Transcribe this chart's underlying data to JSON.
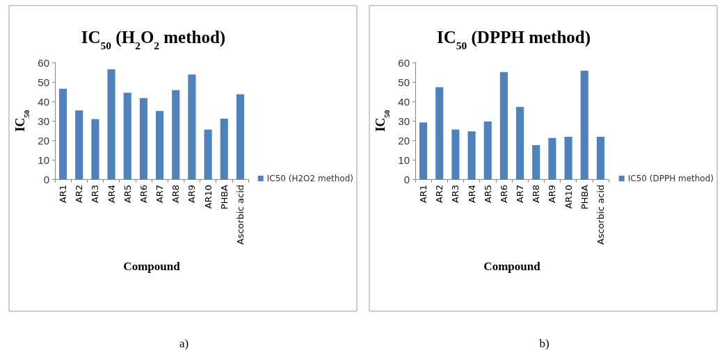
{
  "chart_data": [
    {
      "type": "bar",
      "title": "IC$_{50}$ (H$_{2}$O$_{2}$ method)",
      "xlabel": "Compound",
      "ylabel": "IC$_{50}$",
      "categories": [
        "AR1",
        "AR2",
        "AR3",
        "AR4",
        "AR5",
        "AR6",
        "AR7",
        "AR8",
        "AR9",
        "AR10",
        "PHBA",
        "Ascorbic acid"
      ],
      "series": [
        {
          "name": "IC50 (H2O2 method)",
          "color": "#4f81bd",
          "values": [
            46.5,
            35.4,
            30.9,
            56.5,
            44.5,
            41.7,
            35.1,
            45.8,
            53.8,
            25.5,
            31.2,
            43.7
          ]
        }
      ],
      "ylim": [
        0,
        60
      ],
      "yticks": [
        0,
        10,
        20,
        30,
        40,
        50,
        60
      ],
      "grid": false,
      "legend": "right",
      "annotations": [
        "a)"
      ]
    },
    {
      "type": "bar",
      "title": "IC$_{50}$ (DPPH method)",
      "xlabel": "Compound",
      "ylabel": "IC$_{50}$",
      "categories": [
        "AR1",
        "AR2",
        "AR3",
        "AR4",
        "AR5",
        "AR6",
        "AR7",
        "AR8",
        "AR9",
        "AR10",
        "PHBA",
        "Ascorbic acid"
      ],
      "series": [
        {
          "name": "IC50 (DPPH method)",
          "color": "#4f81bd",
          "values": [
            29.2,
            47.3,
            25.5,
            24.6,
            29.7,
            55.1,
            37.1,
            17.5,
            21.2,
            21.8,
            55.8,
            21.8
          ]
        }
      ],
      "ylim": [
        0,
        60
      ],
      "yticks": [
        0,
        10,
        20,
        30,
        40,
        50,
        60
      ],
      "grid": false,
      "legend": "right",
      "annotations": [
        "b)"
      ]
    }
  ]
}
